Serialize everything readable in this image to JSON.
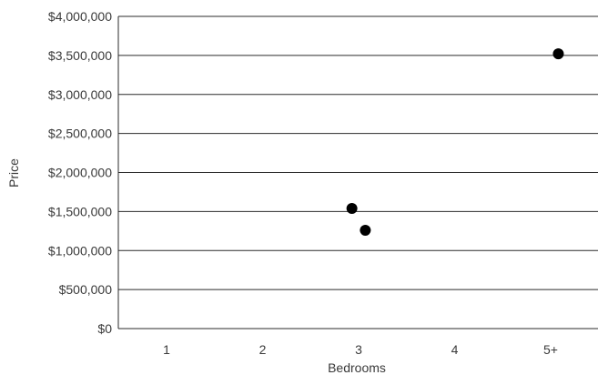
{
  "chart_data": {
    "type": "scatter",
    "title": "",
    "xlabel": "Bedrooms",
    "ylabel": "Price",
    "categories": [
      "1",
      "2",
      "3",
      "4",
      "5+"
    ],
    "y_ticks": [
      "$0",
      "$500,000",
      "$1,000,000",
      "$1,500,000",
      "$2,000,000",
      "$2,500,000",
      "$3,000,000",
      "$3,500,000",
      "$4,000,000"
    ],
    "ylim": [
      0,
      4000000
    ],
    "grid": true,
    "legend": "none",
    "colors": {
      "point": "#000000",
      "grid": "#2b2b2b"
    },
    "points": [
      {
        "x": 2.93,
        "y": 1540000
      },
      {
        "x": 3.07,
        "y": 1260000
      },
      {
        "x": 5.08,
        "y": 3520000
      }
    ]
  }
}
